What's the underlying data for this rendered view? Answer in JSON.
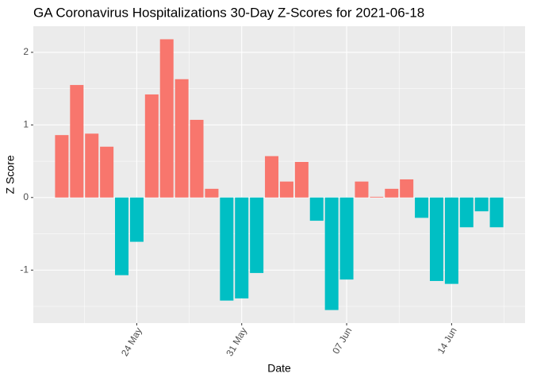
{
  "chart_data": {
    "type": "bar",
    "title": "GA Coronavirus Hospitalizations 30-Day Z-Scores for 2021-06-18",
    "x_label": "Date",
    "y_label": "Z Score",
    "categories": [
      null,
      null,
      null,
      null,
      null,
      "24 May",
      null,
      null,
      null,
      null,
      null,
      null,
      "31 May",
      null,
      null,
      null,
      null,
      null,
      null,
      "07 Jun",
      null,
      null,
      null,
      null,
      null,
      null,
      "14 Jun",
      null,
      null,
      null
    ],
    "values": [
      0.86,
      1.55,
      0.88,
      0.7,
      -1.07,
      -0.61,
      1.42,
      2.18,
      1.63,
      1.07,
      0.12,
      -1.42,
      -1.39,
      -1.04,
      0.57,
      0.22,
      0.49,
      -0.32,
      -1.55,
      -1.13,
      0.22,
      0.01,
      0.12,
      0.25,
      -0.28,
      -1.15,
      -1.19,
      -0.41,
      -0.19,
      -0.41
    ],
    "colors": {
      "positive": "#F8766D",
      "negative": "#00BFC4"
    },
    "ylim": [
      -1.73,
      2.36
    ],
    "yticks": [
      -1,
      0,
      1,
      2
    ],
    "grid": true
  }
}
